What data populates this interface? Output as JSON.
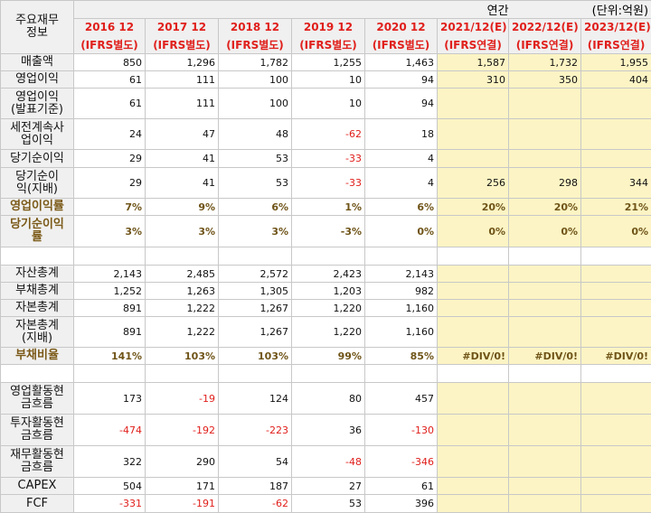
{
  "header": {
    "corner_label": "주요재무\n정보",
    "section_label": "연간",
    "unit_label": "(단위:억원)",
    "years": [
      "2016 12",
      "2017 12",
      "2018 12",
      "2019 12",
      "2020 12",
      "2021/12(E)",
      "2022/12(E)",
      "2023/12(E)"
    ],
    "subs": [
      "(IFRS별도)",
      "(IFRS별도)",
      "(IFRS별도)",
      "(IFRS별도)",
      "(IFRS별도)",
      "(IFRS연결)",
      "(IFRS연결)",
      "(IFRS연결)"
    ]
  },
  "rows": [
    {
      "label": "매출액",
      "values": [
        "850",
        "1,296",
        "1,782",
        "1,255",
        "1,463",
        "1,587",
        "1,732",
        "1,955"
      ]
    },
    {
      "label": "영업이익",
      "values": [
        "61",
        "111",
        "100",
        "10",
        "94",
        "310",
        "350",
        "404"
      ]
    },
    {
      "label": "영업이익\n(발표기준)",
      "values": [
        "61",
        "111",
        "100",
        "10",
        "94",
        "",
        "",
        ""
      ]
    },
    {
      "label": "세전계속사\n업이익",
      "values": [
        "24",
        "47",
        "48",
        "-62",
        "18",
        "",
        "",
        ""
      ]
    },
    {
      "label": "당기순이익",
      "values": [
        "29",
        "41",
        "53",
        "-33",
        "4",
        "",
        "",
        ""
      ]
    },
    {
      "label": "당기순이\n익(지배)",
      "values": [
        "29",
        "41",
        "53",
        "-33",
        "4",
        "256",
        "298",
        "344"
      ]
    },
    {
      "label": "영업이익률",
      "values": [
        "7%",
        "9%",
        "6%",
        "1%",
        "6%",
        "20%",
        "20%",
        "21%"
      ],
      "ratio": true
    },
    {
      "label": "당기순이익\n률",
      "values": [
        "3%",
        "3%",
        "3%",
        "-3%",
        "0%",
        "0%",
        "0%",
        "0%"
      ],
      "ratio": true
    },
    {
      "label": "",
      "values": [
        "",
        "",
        "",
        "",
        "",
        "",
        "",
        ""
      ],
      "blank": true
    },
    {
      "label": "자산총계",
      "values": [
        "2,143",
        "2,485",
        "2,572",
        "2,423",
        "2,143",
        "",
        "",
        ""
      ]
    },
    {
      "label": "부채총계",
      "values": [
        "1,252",
        "1,263",
        "1,305",
        "1,203",
        "982",
        "",
        "",
        ""
      ]
    },
    {
      "label": "자본총계",
      "values": [
        "891",
        "1,222",
        "1,267",
        "1,220",
        "1,160",
        "",
        "",
        ""
      ]
    },
    {
      "label": "자본총계\n(지배)",
      "values": [
        "891",
        "1,222",
        "1,267",
        "1,220",
        "1,160",
        "",
        "",
        ""
      ]
    },
    {
      "label": "부채비율",
      "values": [
        "141%",
        "103%",
        "103%",
        "99%",
        "85%",
        "#DIV/0!",
        "#DIV/0!",
        "#DIV/0!"
      ],
      "ratio": true
    },
    {
      "label": "",
      "values": [
        "",
        "",
        "",
        "",
        "",
        "",
        "",
        ""
      ],
      "blank": true
    },
    {
      "label": "영업활동현\n금흐름",
      "values": [
        "173",
        "-19",
        "124",
        "80",
        "457",
        "",
        "",
        ""
      ]
    },
    {
      "label": "투자활동현\n금흐름",
      "values": [
        "-474",
        "-192",
        "-223",
        "36",
        "-130",
        "",
        "",
        ""
      ]
    },
    {
      "label": "재무활동현\n금흐름",
      "values": [
        "322",
        "290",
        "54",
        "-48",
        "-346",
        "",
        "",
        ""
      ]
    },
    {
      "label": "CAPEX",
      "values": [
        "504",
        "171",
        "187",
        "27",
        "61",
        "",
        "",
        ""
      ]
    },
    {
      "label": "FCF",
      "values": [
        "-331",
        "-191",
        "-62",
        "53",
        "396",
        "",
        "",
        ""
      ]
    }
  ],
  "row_heights": [
    19,
    19,
    34,
    34,
    20,
    34,
    19,
    35,
    20,
    19,
    19,
    19,
    34,
    19,
    20,
    35,
    35,
    35,
    19,
    20
  ],
  "colors": {
    "negative": "#e0201c",
    "estimate_fill": "#fcf4c4",
    "ratio_text": "#6f5418"
  }
}
